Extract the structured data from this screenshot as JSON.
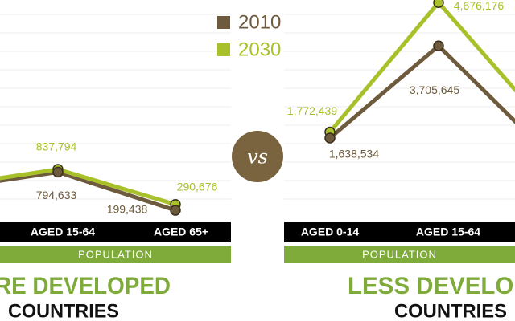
{
  "divider_label": "vs",
  "chart_data": [
    {
      "type": "line",
      "title": "RE DEVELOPED",
      "subtitle": "COUNTRIES",
      "x_axis_label": "POPULATION",
      "categories": [
        null,
        "AGED 15-64",
        "AGED 65+"
      ],
      "series": [
        {
          "name": "2010",
          "color": "#6e5a3c",
          "values": [
            520000,
            794633,
            199438
          ],
          "value_labels": [
            null,
            "794,633",
            "199,438"
          ]
        },
        {
          "name": "2030",
          "color": "#a8c12a",
          "values": [
            560000,
            837794,
            290676
          ],
          "value_labels": [
            null,
            "837,794",
            "290,676"
          ]
        }
      ]
    },
    {
      "type": "line",
      "title": "LESS DEVELOP",
      "subtitle": "COUNTRIES",
      "x_axis_label": "POPULATION",
      "categories": [
        "AGED 0-14",
        "AGED 15-64",
        null
      ],
      "series": [
        {
          "name": "2010",
          "color": "#6e5a3c",
          "values": [
            1638534,
            3705645,
            1300000
          ],
          "value_labels": [
            "1,638,534",
            "3,705,645",
            null
          ]
        },
        {
          "name": "2030",
          "color": "#a8c12a",
          "values": [
            1772439,
            4676176,
            1900000
          ],
          "value_labels": [
            "1,772,439",
            "4,676,176",
            null
          ]
        }
      ]
    }
  ]
}
